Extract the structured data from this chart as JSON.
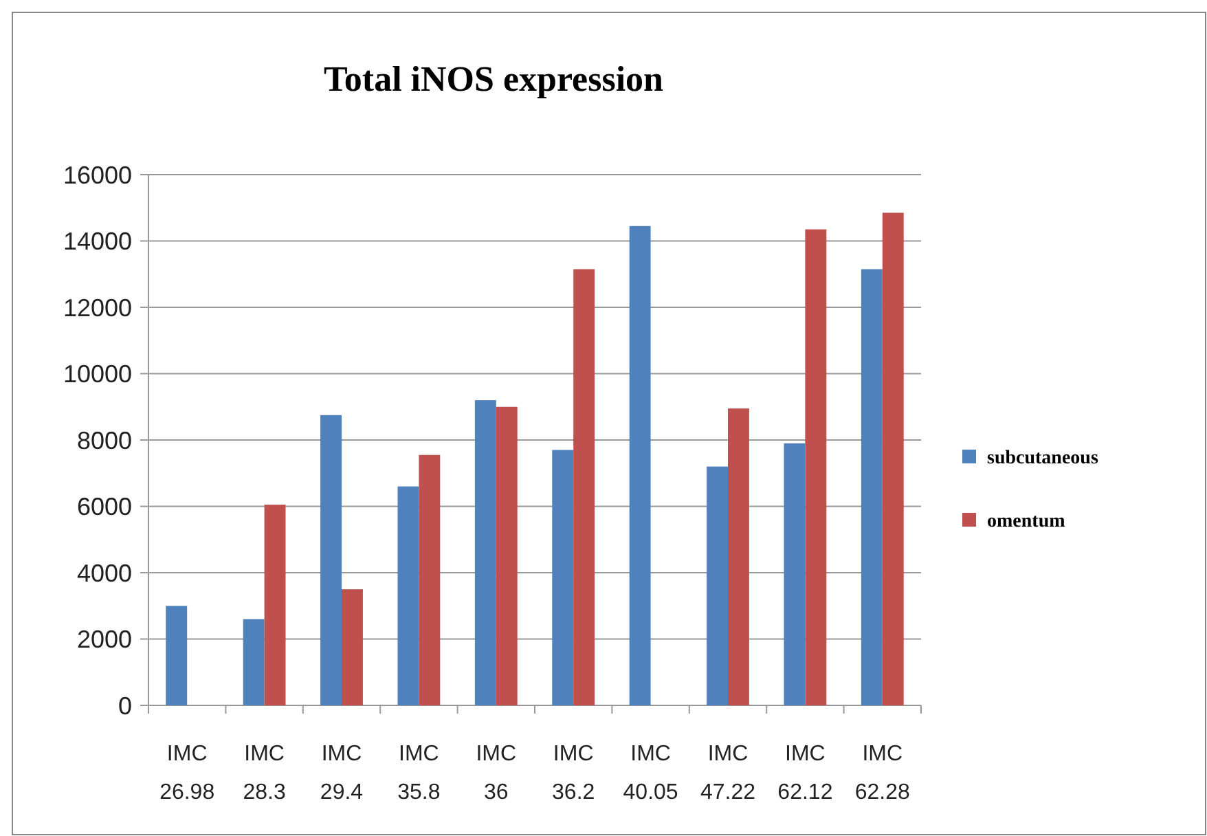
{
  "chart_data": {
    "type": "bar",
    "title": "Total iNOS expression",
    "categories": [
      "IMC 26.98",
      "IMC 28.3",
      "IMC 29.4",
      "IMC 35.8",
      "IMC 36",
      "IMC 36.2",
      "IMC 40.05",
      "IMC 47.22",
      "IMC 62.12",
      "IMC 62.28"
    ],
    "series": [
      {
        "name": "subcutaneous",
        "color": "#4f81bd",
        "values": [
          3000,
          2600,
          8750,
          6600,
          9200,
          7700,
          14450,
          7200,
          7900,
          13150
        ]
      },
      {
        "name": "omentum",
        "color": "#c0504d",
        "values": [
          null,
          6050,
          3500,
          7550,
          9000,
          13150,
          null,
          8950,
          14350,
          14850
        ]
      }
    ],
    "ylim": [
      0,
      16000
    ],
    "yticks": [
      0,
      2000,
      4000,
      6000,
      8000,
      10000,
      12000,
      14000,
      16000
    ],
    "grid": "y",
    "legend": "right"
  }
}
